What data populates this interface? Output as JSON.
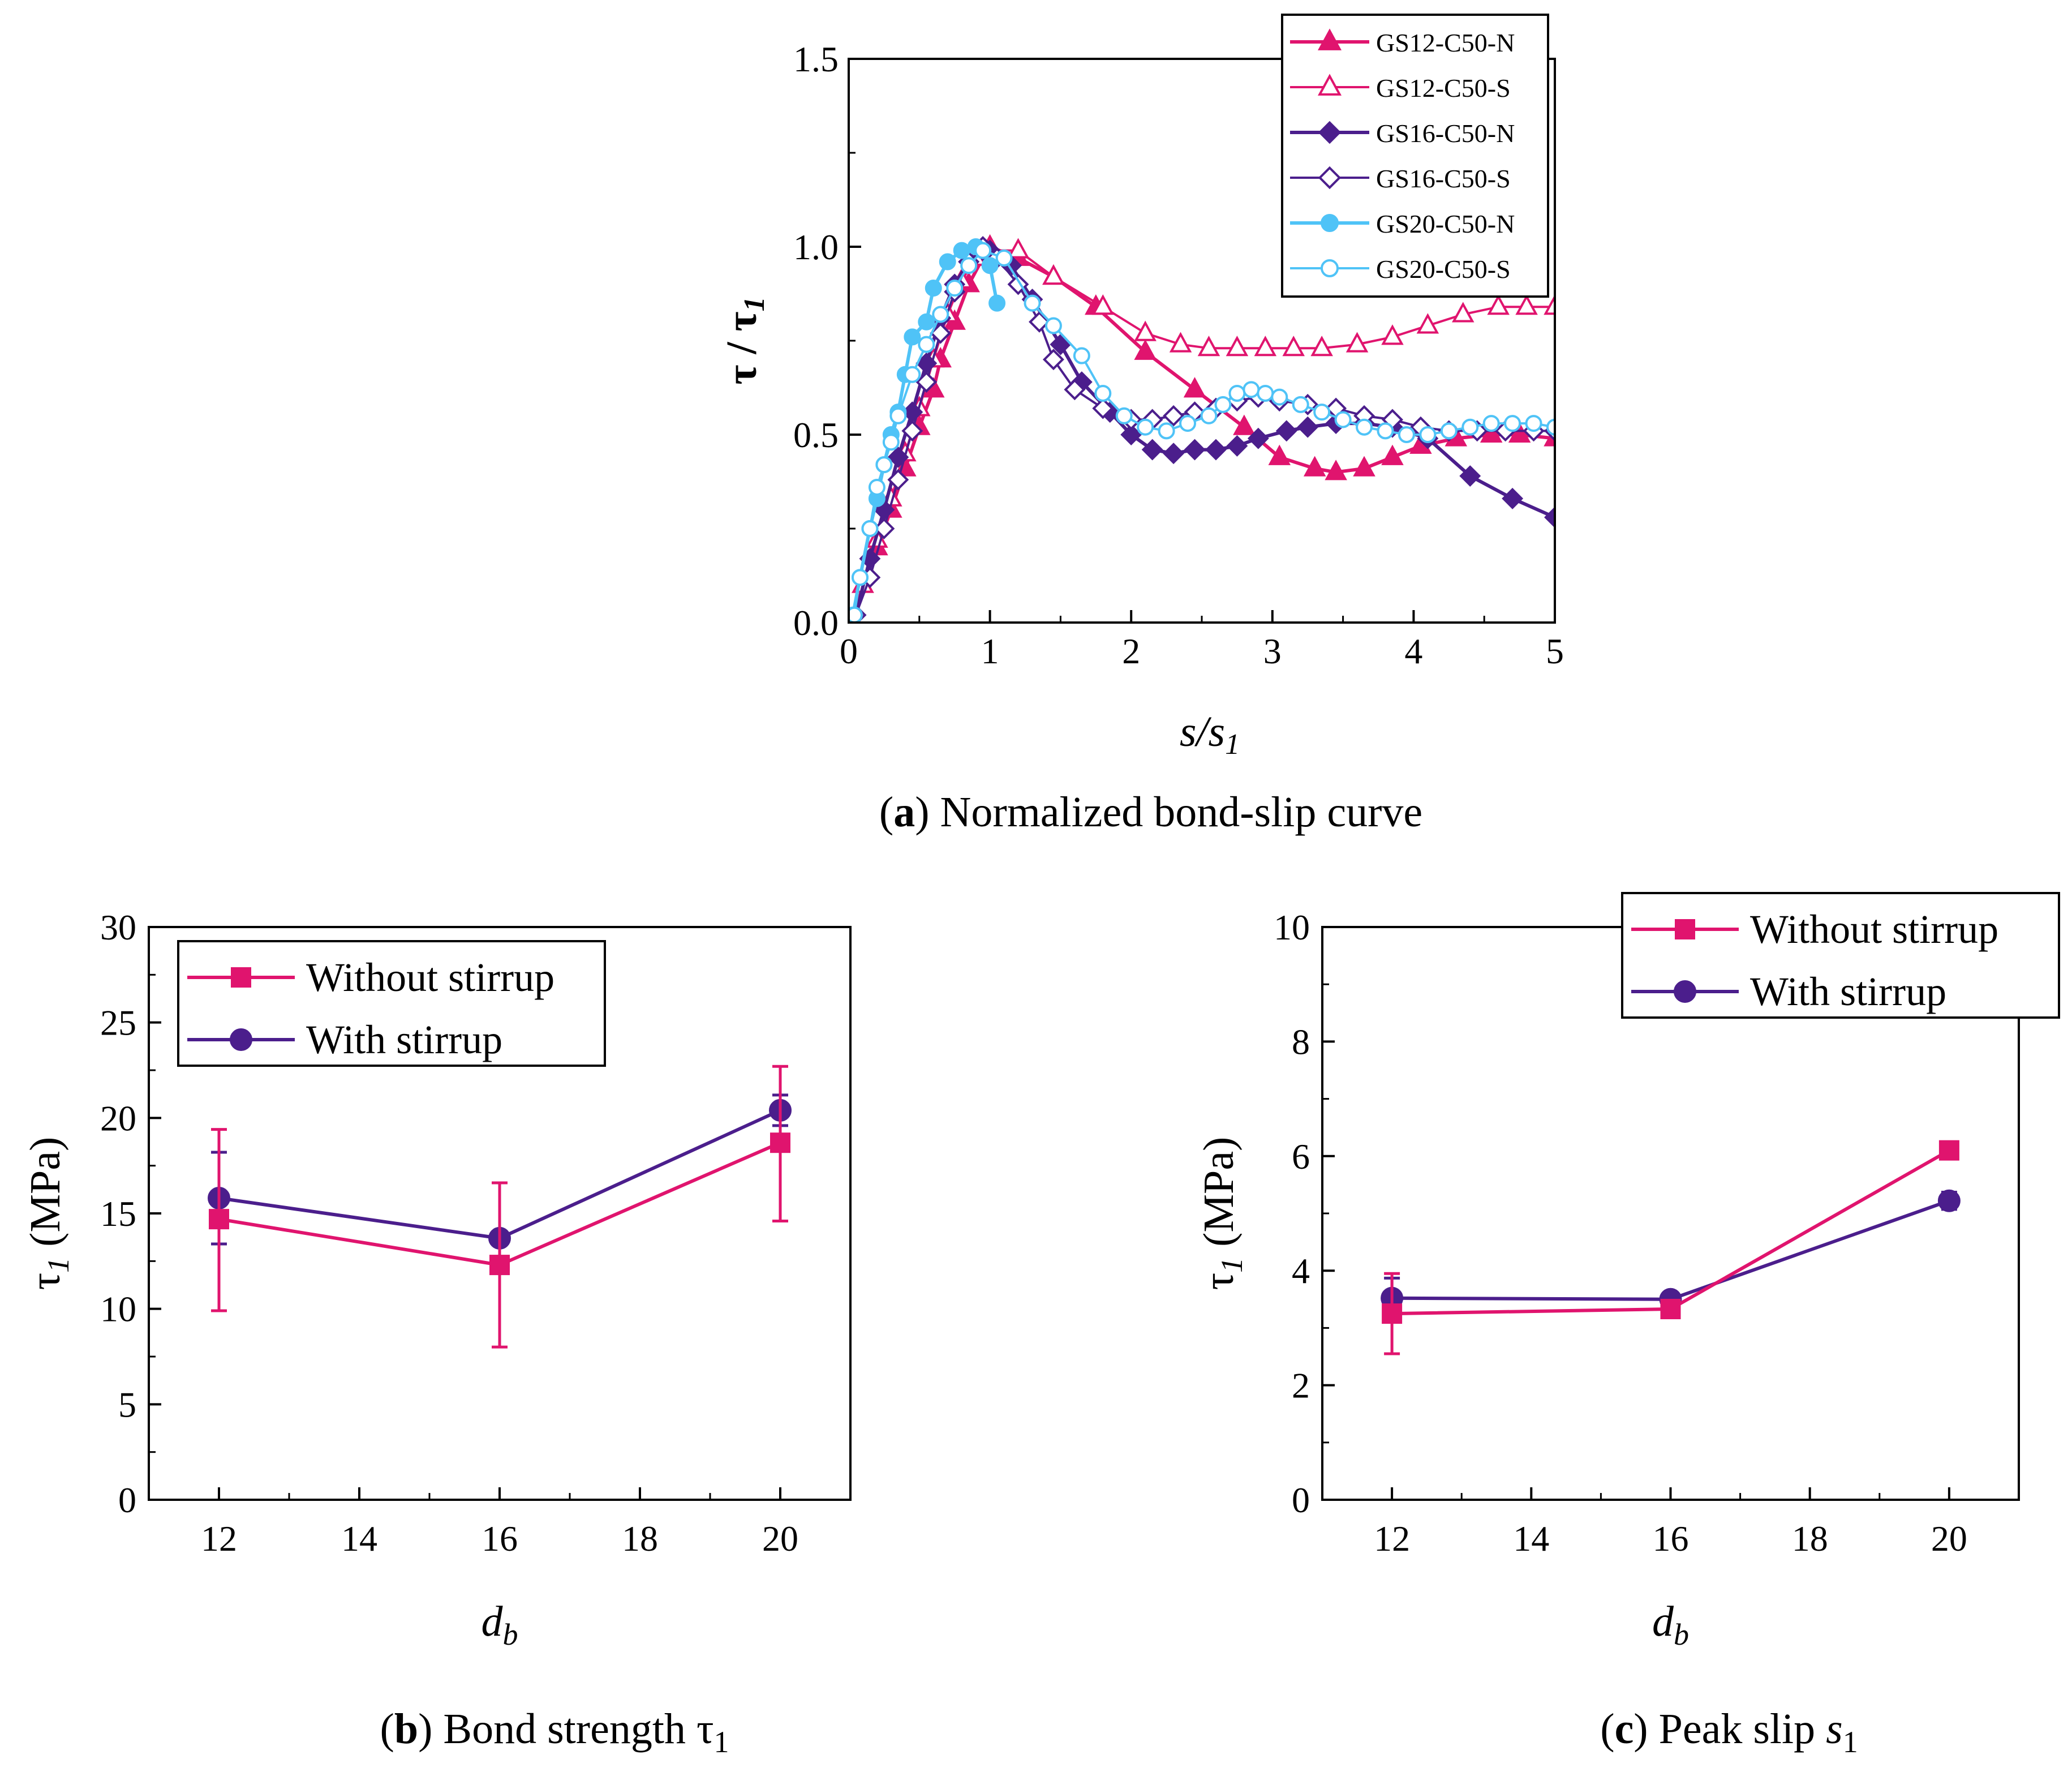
{
  "chart_data": [
    {
      "type": "line",
      "panel": "a",
      "caption_letter": "a",
      "caption_text": "Normalized bond-slip curve",
      "xlabel": "s/s",
      "xlabel_sub": "1",
      "ylabel": "τ / τ",
      "ylabel_sub": "1",
      "xlim": [
        0,
        5
      ],
      "ylim": [
        0,
        1.5
      ],
      "xticks": [
        0,
        1,
        2,
        3,
        4,
        5
      ],
      "yticks": [
        0.0,
        0.5,
        1.0,
        1.5
      ],
      "ytick_labels": [
        "0.0",
        "0.5",
        "1.0",
        "1.5"
      ],
      "legend_position": "top-right",
      "series": [
        {
          "name": "GS12-C50-N",
          "color": "#e0146e",
          "marker": "triangle",
          "filled": true,
          "points": [
            [
              0.03,
              0.0
            ],
            [
              0.1,
              0.1
            ],
            [
              0.2,
              0.2
            ],
            [
              0.3,
              0.3
            ],
            [
              0.4,
              0.41
            ],
            [
              0.5,
              0.52
            ],
            [
              0.6,
              0.62
            ],
            [
              0.65,
              0.7
            ],
            [
              0.75,
              0.8
            ],
            [
              0.85,
              0.9
            ],
            [
              0.95,
              0.97
            ],
            [
              1.0,
              1.0
            ],
            [
              1.2,
              0.97
            ],
            [
              1.45,
              0.92
            ],
            [
              1.75,
              0.84
            ],
            [
              2.1,
              0.72
            ],
            [
              2.45,
              0.62
            ],
            [
              2.8,
              0.52
            ],
            [
              3.05,
              0.44
            ],
            [
              3.3,
              0.41
            ],
            [
              3.45,
              0.4
            ],
            [
              3.65,
              0.41
            ],
            [
              3.85,
              0.44
            ],
            [
              4.05,
              0.47
            ],
            [
              4.3,
              0.49
            ],
            [
              4.55,
              0.5
            ],
            [
              4.75,
              0.5
            ],
            [
              5.0,
              0.49
            ]
          ]
        },
        {
          "name": "GS12-C50-S",
          "color": "#e0146e",
          "marker": "triangle",
          "filled": false,
          "points": [
            [
              0.03,
              0.0
            ],
            [
              0.1,
              0.1
            ],
            [
              0.2,
              0.22
            ],
            [
              0.3,
              0.33
            ],
            [
              0.4,
              0.45
            ],
            [
              0.5,
              0.57
            ],
            [
              0.6,
              0.7
            ],
            [
              0.7,
              0.82
            ],
            [
              0.8,
              0.91
            ],
            [
              0.9,
              0.97
            ],
            [
              1.0,
              0.99
            ],
            [
              1.2,
              0.99
            ],
            [
              1.45,
              0.92
            ],
            [
              1.8,
              0.84
            ],
            [
              2.1,
              0.77
            ],
            [
              2.35,
              0.74
            ],
            [
              2.55,
              0.73
            ],
            [
              2.75,
              0.73
            ],
            [
              2.95,
              0.73
            ],
            [
              3.15,
              0.73
            ],
            [
              3.35,
              0.73
            ],
            [
              3.6,
              0.74
            ],
            [
              3.85,
              0.76
            ],
            [
              4.1,
              0.79
            ],
            [
              4.35,
              0.82
            ],
            [
              4.6,
              0.84
            ],
            [
              4.8,
              0.84
            ],
            [
              5.0,
              0.84
            ]
          ]
        },
        {
          "name": "GS16-C50-N",
          "color": "#4b1e8c",
          "marker": "diamond",
          "filled": true,
          "points": [
            [
              0.05,
              0.02
            ],
            [
              0.15,
              0.17
            ],
            [
              0.25,
              0.3
            ],
            [
              0.35,
              0.44
            ],
            [
              0.45,
              0.56
            ],
            [
              0.55,
              0.69
            ],
            [
              0.65,
              0.81
            ],
            [
              0.75,
              0.9
            ],
            [
              0.85,
              0.96
            ],
            [
              0.95,
              0.99
            ],
            [
              1.0,
              0.99
            ],
            [
              1.15,
              0.95
            ],
            [
              1.3,
              0.86
            ],
            [
              1.5,
              0.74
            ],
            [
              1.65,
              0.64
            ],
            [
              1.85,
              0.56
            ],
            [
              2.0,
              0.5
            ],
            [
              2.15,
              0.46
            ],
            [
              2.3,
              0.45
            ],
            [
              2.45,
              0.46
            ],
            [
              2.6,
              0.46
            ],
            [
              2.75,
              0.47
            ],
            [
              2.9,
              0.49
            ],
            [
              3.1,
              0.51
            ],
            [
              3.25,
              0.52
            ],
            [
              3.45,
              0.53
            ],
            [
              3.65,
              0.53
            ],
            [
              3.85,
              0.52
            ],
            [
              4.1,
              0.49
            ],
            [
              4.4,
              0.39
            ],
            [
              4.7,
              0.33
            ],
            [
              5.0,
              0.28
            ]
          ]
        },
        {
          "name": "GS16-C50-S",
          "color": "#4b1e8c",
          "marker": "diamond",
          "filled": false,
          "points": [
            [
              0.05,
              0.02
            ],
            [
              0.15,
              0.12
            ],
            [
              0.25,
              0.25
            ],
            [
              0.35,
              0.38
            ],
            [
              0.45,
              0.51
            ],
            [
              0.55,
              0.64
            ],
            [
              0.65,
              0.77
            ],
            [
              0.75,
              0.88
            ],
            [
              0.85,
              0.96
            ],
            [
              0.95,
              1.0
            ],
            [
              1.05,
              0.97
            ],
            [
              1.2,
              0.9
            ],
            [
              1.35,
              0.8
            ],
            [
              1.45,
              0.7
            ],
            [
              1.6,
              0.62
            ],
            [
              1.8,
              0.57
            ],
            [
              2.0,
              0.54
            ],
            [
              2.15,
              0.54
            ],
            [
              2.3,
              0.55
            ],
            [
              2.45,
              0.56
            ],
            [
              2.6,
              0.57
            ],
            [
              2.75,
              0.59
            ],
            [
              2.9,
              0.6
            ],
            [
              3.05,
              0.59
            ],
            [
              3.25,
              0.58
            ],
            [
              3.45,
              0.57
            ],
            [
              3.65,
              0.55
            ],
            [
              3.85,
              0.54
            ],
            [
              4.05,
              0.52
            ],
            [
              4.25,
              0.51
            ],
            [
              4.45,
              0.51
            ],
            [
              4.65,
              0.51
            ],
            [
              4.85,
              0.51
            ],
            [
              5.0,
              0.51
            ]
          ]
        },
        {
          "name": "GS20-C50-N",
          "color": "#4fc3f7",
          "marker": "circle",
          "filled": true,
          "points": [
            [
              0.03,
              0.02
            ],
            [
              0.08,
              0.12
            ],
            [
              0.15,
              0.25
            ],
            [
              0.2,
              0.33
            ],
            [
              0.25,
              0.42
            ],
            [
              0.3,
              0.5
            ],
            [
              0.35,
              0.56
            ],
            [
              0.4,
              0.66
            ],
            [
              0.45,
              0.76
            ],
            [
              0.55,
              0.8
            ],
            [
              0.6,
              0.89
            ],
            [
              0.7,
              0.96
            ],
            [
              0.8,
              0.99
            ],
            [
              0.9,
              1.0
            ],
            [
              0.95,
              0.99
            ],
            [
              1.0,
              0.95
            ],
            [
              1.05,
              0.85
            ]
          ]
        },
        {
          "name": "GS20-C50-S",
          "color": "#4fc3f7",
          "marker": "circle",
          "filled": false,
          "points": [
            [
              0.04,
              0.02
            ],
            [
              0.08,
              0.12
            ],
            [
              0.15,
              0.25
            ],
            [
              0.2,
              0.36
            ],
            [
              0.25,
              0.42
            ],
            [
              0.3,
              0.48
            ],
            [
              0.35,
              0.55
            ],
            [
              0.45,
              0.66
            ],
            [
              0.55,
              0.74
            ],
            [
              0.65,
              0.82
            ],
            [
              0.75,
              0.89
            ],
            [
              0.85,
              0.95
            ],
            [
              0.95,
              0.99
            ],
            [
              1.1,
              0.97
            ],
            [
              1.3,
              0.85
            ],
            [
              1.45,
              0.79
            ],
            [
              1.65,
              0.71
            ],
            [
              1.8,
              0.61
            ],
            [
              1.95,
              0.55
            ],
            [
              2.1,
              0.52
            ],
            [
              2.25,
              0.51
            ],
            [
              2.4,
              0.53
            ],
            [
              2.55,
              0.55
            ],
            [
              2.65,
              0.58
            ],
            [
              2.75,
              0.61
            ],
            [
              2.85,
              0.62
            ],
            [
              2.95,
              0.61
            ],
            [
              3.05,
              0.6
            ],
            [
              3.2,
              0.58
            ],
            [
              3.35,
              0.56
            ],
            [
              3.5,
              0.54
            ],
            [
              3.65,
              0.52
            ],
            [
              3.8,
              0.51
            ],
            [
              3.95,
              0.5
            ],
            [
              4.1,
              0.5
            ],
            [
              4.25,
              0.51
            ],
            [
              4.4,
              0.52
            ],
            [
              4.55,
              0.53
            ],
            [
              4.7,
              0.53
            ],
            [
              4.85,
              0.53
            ],
            [
              5.0,
              0.52
            ]
          ]
        }
      ]
    },
    {
      "type": "line",
      "panel": "b",
      "caption_letter": "b",
      "caption_text": "Bond strength τ",
      "caption_sub": "1",
      "xlabel": "d",
      "xlabel_sub": "b",
      "ylabel": "τ",
      "ylabel_sub": "1",
      "ylabel_unit": "(MPa)",
      "xlim": [
        11,
        21
      ],
      "ylim": [
        0,
        30
      ],
      "xticks": [
        12,
        14,
        16,
        18,
        20
      ],
      "yticks": [
        0,
        5,
        10,
        15,
        20,
        25,
        30
      ],
      "legend_position": "top-left",
      "series": [
        {
          "name": "Without stirrup",
          "color": "#e0146e",
          "marker": "square",
          "x": [
            12,
            16,
            20
          ],
          "values": [
            14.7,
            12.3,
            18.7
          ],
          "err_low": [
            4.8,
            4.3,
            4.1
          ],
          "err_high": [
            4.7,
            4.3,
            4.0
          ]
        },
        {
          "name": "With stirrup",
          "color": "#4b1e8c",
          "marker": "circle",
          "x": [
            12,
            16,
            20
          ],
          "values": [
            15.8,
            13.7,
            20.4
          ],
          "err_low": [
            2.4,
            0.3,
            0.8
          ],
          "err_high": [
            2.4,
            0.3,
            0.8
          ]
        }
      ]
    },
    {
      "type": "line",
      "panel": "c",
      "caption_letter": "c",
      "caption_text": "Peak slip ",
      "caption_math": "s",
      "caption_sub": "1",
      "xlabel": "d",
      "xlabel_sub": "b",
      "ylabel": "τ",
      "ylabel_sub": "1",
      "ylabel_unit": "(MPa)",
      "xlim": [
        11,
        21
      ],
      "ylim": [
        0,
        10
      ],
      "xticks": [
        12,
        14,
        16,
        18,
        20
      ],
      "yticks": [
        0,
        2,
        4,
        6,
        8,
        10
      ],
      "legend_position": "top-right",
      "series": [
        {
          "name": "Without stirrup",
          "color": "#e0146e",
          "marker": "square",
          "x": [
            12,
            16,
            20
          ],
          "values": [
            3.25,
            3.33,
            6.1
          ],
          "err_low": [
            0.7,
            0.05,
            0.08
          ],
          "err_high": [
            0.7,
            0.05,
            0.08
          ]
        },
        {
          "name": "With stirrup",
          "color": "#4b1e8c",
          "marker": "circle",
          "x": [
            12,
            16,
            20
          ],
          "values": [
            3.52,
            3.5,
            5.22
          ],
          "err_low": [
            0.35,
            0.05,
            0.15
          ],
          "err_high": [
            0.35,
            0.05,
            0.15
          ]
        }
      ]
    }
  ]
}
